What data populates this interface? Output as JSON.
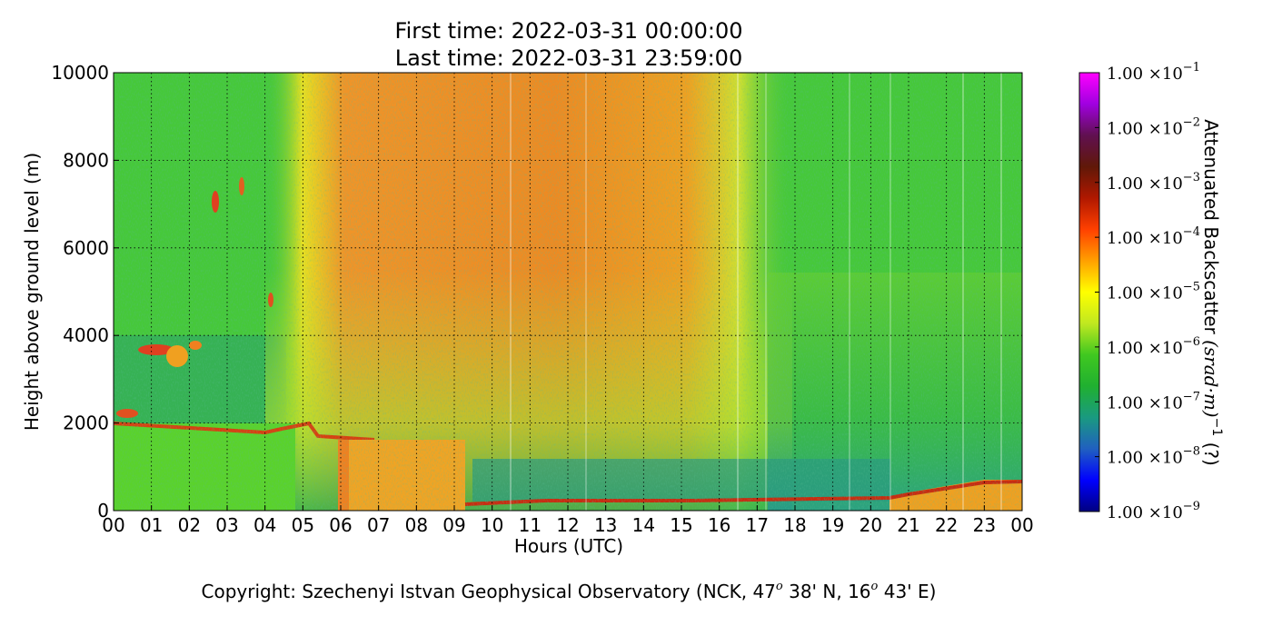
{
  "chart_data": {
    "type": "heatmap",
    "title": [
      "First time: 2022-03-31 00:00:00",
      "Last time: 2022-03-31 23:59:00"
    ],
    "x_label": "Hours (UTC)",
    "y_label": "Height above ground level (m)",
    "xlim": [
      0,
      24
    ],
    "xticks": [
      {
        "value": 0,
        "label": "00"
      },
      {
        "value": 1,
        "label": "01"
      },
      {
        "value": 2,
        "label": "02"
      },
      {
        "value": 3,
        "label": "03"
      },
      {
        "value": 4,
        "label": "04"
      },
      {
        "value": 5,
        "label": "05"
      },
      {
        "value": 6,
        "label": "06"
      },
      {
        "value": 7,
        "label": "07"
      },
      {
        "value": 8,
        "label": "08"
      },
      {
        "value": 9,
        "label": "09"
      },
      {
        "value": 10,
        "label": "10"
      },
      {
        "value": 11,
        "label": "11"
      },
      {
        "value": 12,
        "label": "12"
      },
      {
        "value": 13,
        "label": "13"
      },
      {
        "value": 14,
        "label": "14"
      },
      {
        "value": 15,
        "label": "15"
      },
      {
        "value": 16,
        "label": "16"
      },
      {
        "value": 17,
        "label": "17"
      },
      {
        "value": 18,
        "label": "18"
      },
      {
        "value": 19,
        "label": "19"
      },
      {
        "value": 20,
        "label": "20"
      },
      {
        "value": 21,
        "label": "21"
      },
      {
        "value": 22,
        "label": "22"
      },
      {
        "value": 23,
        "label": "23"
      },
      {
        "value": 24,
        "label": "00"
      }
    ],
    "ylim": [
      0,
      10000
    ],
    "yticks": [
      0,
      2000,
      4000,
      6000,
      8000,
      10000
    ],
    "grid": true,
    "colorbar": {
      "label": {
        "text": "Attenuated Backscatter ",
        "math": "(srad·m)",
        "exponent": "−1",
        "suffix": " (?)"
      },
      "scale": "log",
      "clim": [
        1e-09,
        0.1
      ],
      "colors": [
        "#000080",
        "#0000ff",
        "#2060c0",
        "#1a9a80",
        "#20b030",
        "#40c820",
        "#c0e820",
        "#ffff00",
        "#ffa000",
        "#ff4000",
        "#b01800",
        "#601808",
        "#601050",
        "#a000e0",
        "#ff00ff"
      ],
      "ticks": [
        {
          "value": 1e-09,
          "label": "1.00 ×10",
          "exponent": "−9"
        },
        {
          "value": 1e-08,
          "label": "1.00 ×10",
          "exponent": "−8"
        },
        {
          "value": 1e-07,
          "label": "1.00 ×10",
          "exponent": "−7"
        },
        {
          "value": 1e-06,
          "label": "1.00 ×10",
          "exponent": "−6"
        },
        {
          "value": 1e-05,
          "label": "1.00 ×10",
          "exponent": "−5"
        },
        {
          "value": 0.0001,
          "label": "1.00 ×10",
          "exponent": "−4"
        },
        {
          "value": 0.001,
          "label": "1.00 ×10",
          "exponent": "−3"
        },
        {
          "value": 0.01,
          "label": "1.00 ×10",
          "exponent": "−2"
        },
        {
          "value": 0.1,
          "label": "1.00 ×10",
          "exponent": "−1"
        }
      ]
    },
    "footer": [
      {
        "text": "Copyright: Szechenyi Istvan Geophysical Observatory (NCK, 47"
      },
      {
        "sup": "o"
      },
      {
        "text": " 38' N, 16"
      },
      {
        "sup": "o"
      },
      {
        "text": " 43' E)"
      }
    ]
  }
}
